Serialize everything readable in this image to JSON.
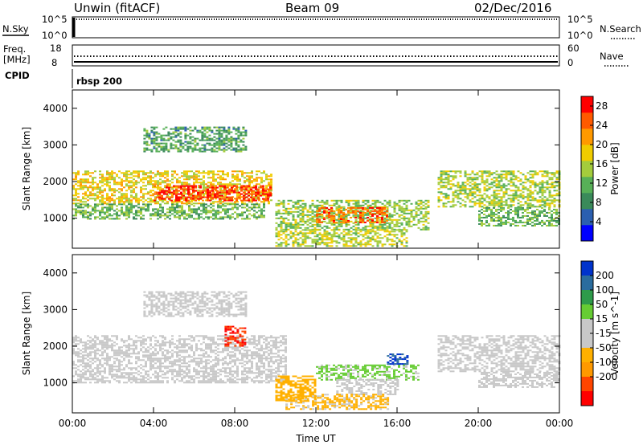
{
  "header": {
    "station": "Unwin (fitACF)",
    "beam": "Beam 09",
    "date": "02/Dec/2016"
  },
  "side_labels": {
    "nsky": "N.Sky",
    "nsky_hi": "10^5",
    "nsky_lo": "10^0",
    "nsearch": "N.Search",
    "freq": "Freq.",
    "freq_unit": "[MHz]",
    "freq_hi": "18",
    "freq_lo": "8",
    "nave": "Nave",
    "nave_hi": "60",
    "nave_lo": "0",
    "cpid": "CPID",
    "cpid_value": "rbsp 200"
  },
  "colors": {
    "power_scale": [
      "#0000ff",
      "#2b5fb0",
      "#3a8a5a",
      "#57b057",
      "#a4cc3c",
      "#f0cc00",
      "#ff9900",
      "#ff5a00",
      "#ff0000"
    ],
    "velocity_scale": [
      "#ff0000",
      "#ff4500",
      "#ff9900",
      "#ffb000",
      "#c8c8c8",
      "#c8c8c8",
      "#66cc33",
      "#2e9b4a",
      "#2a6c9e",
      "#0033cc"
    ]
  },
  "chart_data": [
    {
      "type": "heatmap",
      "title": "",
      "xlabel": "Time UT",
      "ylabel": "Slant Range [km]",
      "x_ticks": [
        "00:00",
        "04:00",
        "08:00",
        "12:00",
        "16:00",
        "20:00",
        "00:00"
      ],
      "x_range_hours": [
        0,
        24
      ],
      "y_ticks": [
        "1000",
        "2000",
        "3000",
        "4000"
      ],
      "y_range_km": [
        180,
        4500
      ],
      "colorbar": {
        "label": "Power [dB]",
        "ticks": [
          "4",
          "8",
          "12",
          "16",
          "20",
          "24",
          "28"
        ],
        "range": [
          0,
          30
        ]
      },
      "echo_regions": [
        {
          "t_start": 0.0,
          "t_end": 9.8,
          "range_min": 1400,
          "range_max": 2300,
          "value": 18
        },
        {
          "t_start": 4.0,
          "t_end": 9.8,
          "range_min": 1500,
          "range_max": 1900,
          "value": 27
        },
        {
          "t_start": 0.0,
          "t_end": 9.5,
          "range_min": 1000,
          "range_max": 1400,
          "value": 12
        },
        {
          "t_start": 3.5,
          "t_end": 8.5,
          "range_min": 2800,
          "range_max": 3500,
          "value": 10
        },
        {
          "t_start": 10.0,
          "t_end": 17.5,
          "range_min": 700,
          "range_max": 1500,
          "value": 14
        },
        {
          "t_start": 12.0,
          "t_end": 15.5,
          "range_min": 900,
          "range_max": 1300,
          "value": 24
        },
        {
          "t_start": 10.0,
          "t_end": 16.5,
          "range_min": 250,
          "range_max": 700,
          "value": 16
        },
        {
          "t_start": 18.0,
          "t_end": 24.0,
          "range_min": 1300,
          "range_max": 2300,
          "value": 15
        },
        {
          "t_start": 20.0,
          "t_end": 24.0,
          "range_min": 800,
          "range_max": 1300,
          "value": 12
        }
      ]
    },
    {
      "type": "heatmap",
      "title": "",
      "xlabel": "Time UT",
      "ylabel": "Slant Range [km]",
      "x_ticks": [
        "00:00",
        "04:00",
        "08:00",
        "12:00",
        "16:00",
        "20:00",
        "00:00"
      ],
      "x_range_hours": [
        0,
        24
      ],
      "y_ticks": [
        "1000",
        "2000",
        "3000",
        "4000"
      ],
      "y_range_km": [
        180,
        4500
      ],
      "colorbar": {
        "label": "Velocity [m s^-1]",
        "ticks": [
          "200",
          "100",
          "50",
          "15",
          "-15",
          "-50",
          "-100",
          "-200"
        ],
        "range": [
          -250,
          250
        ]
      },
      "echo_regions": [
        {
          "t_start": 0.0,
          "t_end": 10.5,
          "range_min": 1000,
          "range_max": 2300,
          "value": 0
        },
        {
          "t_start": 3.5,
          "t_end": 8.5,
          "range_min": 2800,
          "range_max": 3500,
          "value": 10
        },
        {
          "t_start": 7.5,
          "t_end": 8.5,
          "range_min": 2000,
          "range_max": 2600,
          "value": -200
        },
        {
          "t_start": 10.0,
          "t_end": 12.0,
          "range_min": 500,
          "range_max": 1200,
          "value": -80
        },
        {
          "t_start": 12.0,
          "t_end": 17.0,
          "range_min": 1100,
          "range_max": 1500,
          "value": 60
        },
        {
          "t_start": 15.5,
          "t_end": 16.5,
          "range_min": 1500,
          "range_max": 1800,
          "value": 200
        },
        {
          "t_start": 13.0,
          "t_end": 16.0,
          "range_min": 700,
          "range_max": 1100,
          "value": 0
        },
        {
          "t_start": 10.5,
          "t_end": 15.5,
          "range_min": 300,
          "range_max": 700,
          "value": -60
        },
        {
          "t_start": 18.0,
          "t_end": 24.0,
          "range_min": 1300,
          "range_max": 2300,
          "value": 0
        },
        {
          "t_start": 20.0,
          "t_end": 24.0,
          "range_min": 900,
          "range_max": 1300,
          "value": -10
        }
      ]
    }
  ]
}
